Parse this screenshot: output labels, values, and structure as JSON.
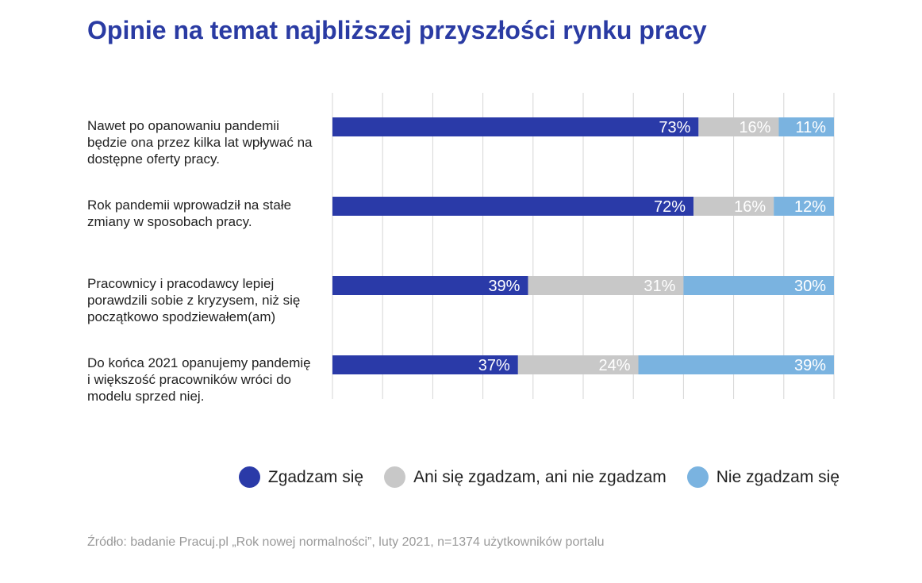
{
  "title": "Opinie na temat najbliższej przyszłości rynku pracy",
  "source": "Źródło: badanie Pracuj.pl „Rok nowej normalności”, luty 2021, n=1374 użytkowników portalu",
  "colors": {
    "agree": "#2a3aa8",
    "neutral": "#c8c8c8",
    "disagree": "#7ab3e0",
    "title": "#2a3ba3"
  },
  "legend": {
    "agree": "Zgadzam się",
    "neutral": "Ani się zgadzam, ani nie zgadzam",
    "disagree": "Nie zgadzam się"
  },
  "chart_data": {
    "type": "bar",
    "orientation": "horizontal-stacked-100",
    "categories": [
      "Nawet po opanowaniu pandemii będzie ona przez kilka lat wpływać na dostępne oferty pracy.",
      "Rok pandemii wprowadził na stałe zmiany w sposobach pracy.",
      "Pracownicy i pracodawcy lepiej porawdzili sobie z kryzysem, niż się początkowo spodziewałem(am)",
      "Do końca 2021 opanujemy pandemię i większość pracowników wróci do modelu sprzed niej."
    ],
    "series": [
      {
        "name": "Zgadzam się",
        "values": [
          73,
          72,
          39,
          37
        ],
        "labels": [
          "73%",
          "72%",
          "39%",
          "37%"
        ]
      },
      {
        "name": "Ani się zgadzam, ani nie zgadzam",
        "values": [
          16,
          16,
          31,
          24
        ],
        "labels": [
          "16%",
          "16%",
          "31%",
          "24%"
        ]
      },
      {
        "name": "Nie zgadzam się",
        "values": [
          11,
          12,
          30,
          39
        ],
        "labels": [
          "11%",
          "12%",
          "30%",
          "39%"
        ]
      }
    ],
    "xlim": [
      0,
      100
    ],
    "grid": true,
    "legend_position": "bottom-right"
  }
}
